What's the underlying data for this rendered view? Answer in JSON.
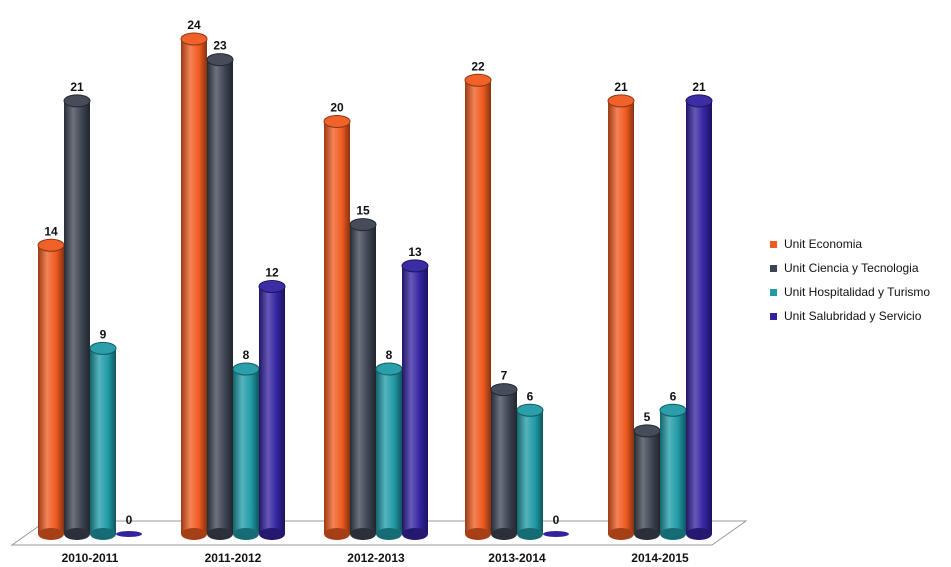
{
  "chart_data": {
    "type": "bar",
    "categories": [
      "2010-2011",
      "2011-2012",
      "2012-2013",
      "2013-2014",
      "2014-2015"
    ],
    "series": [
      {
        "name": "Unit Economia",
        "values": [
          14,
          24,
          20,
          22,
          21
        ],
        "color": "#ef5a1f"
      },
      {
        "name": "Unit Ciencia y Tecnologia",
        "values": [
          21,
          23,
          15,
          7,
          5
        ],
        "color": "#3c4351"
      },
      {
        "name": "Unit Hospitalidad y Turismo",
        "values": [
          9,
          8,
          8,
          6,
          6
        ],
        "color": "#1f9aa6"
      },
      {
        "name": "Unit Salubridad y Servicio",
        "values": [
          0,
          12,
          13,
          0,
          21
        ],
        "color": "#3322a0"
      }
    ],
    "ylim": [
      0,
      24
    ],
    "legend_position": "right",
    "grid": false
  }
}
